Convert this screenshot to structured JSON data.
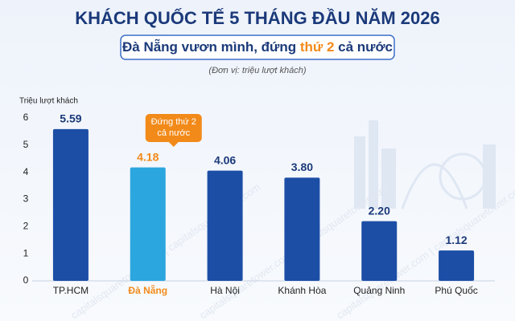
{
  "chart_data": {
    "type": "bar",
    "title": "KHÁCH QUỐC TẾ 5 THÁNG ĐẦU NĂM 2026",
    "subtitle_parts": [
      "Đà Nẵng vươn mình, đứng ",
      "thứ 2",
      " cả nước"
    ],
    "unit_note": "(Đơn vị: triệu lượt khách)",
    "y_label": "Triệu lượt khách",
    "categories": [
      "TP.HCM",
      "Đà Nẵng",
      "Hà Nội",
      "Khánh Hòa",
      "Quảng Ninh",
      "Phú Quốc"
    ],
    "values": [
      5.59,
      4.18,
      4.06,
      3.8,
      2.2,
      1.12
    ],
    "value_labels": [
      "5.59",
      "4.18",
      "4.06",
      "3.80",
      "2.20",
      "1.12"
    ],
    "colors": [
      "#1c4ea6",
      "#2ba6de",
      "#1c4ea6",
      "#1c4ea6",
      "#1c4ea6",
      "#1c4ea6"
    ],
    "highlight_index": 1,
    "highlight_color": "#f28a1a",
    "annotation": {
      "lines": [
        "Đứng thứ 2",
        "cả nước"
      ],
      "index": 1
    },
    "watermark": "capitalsquaretower.com | capitalsquaretower.com",
    "ylim": [
      0,
      6
    ],
    "yticks": [
      0,
      1,
      2,
      3,
      4,
      5,
      6
    ],
    "grid": false
  }
}
